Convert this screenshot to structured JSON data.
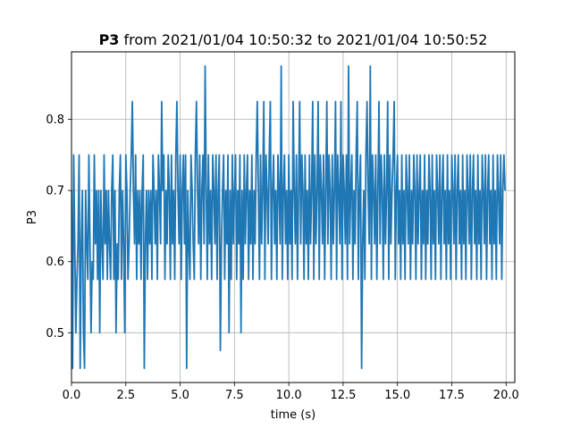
{
  "chart_data": {
    "type": "line",
    "title_bold": "P3",
    "title_rest": " from 2021/01/04 10:50:32 to 2021/01/04 10:50:52",
    "xlabel": "time (s)",
    "ylabel": "P3",
    "xlim": [
      0.0,
      20.4
    ],
    "ylim": [
      0.43,
      0.895
    ],
    "xticks": [
      0.0,
      2.5,
      5.0,
      7.5,
      10.0,
      12.5,
      15.0,
      17.5,
      20.0
    ],
    "xtick_labels": [
      "0.0",
      "2.5",
      "5.0",
      "7.5",
      "10.0",
      "12.5",
      "15.0",
      "17.5",
      "20.0"
    ],
    "yticks": [
      0.5,
      0.6,
      0.7,
      0.8
    ],
    "ytick_labels": [
      "0.5",
      "0.6",
      "0.7",
      "0.8"
    ],
    "grid": true,
    "series_color": "#1f77b4",
    "series": [
      {
        "x_step": 0.05,
        "x_start": 0.0,
        "values": [
          0.7,
          0.45,
          0.75,
          0.625,
          0.5,
          0.575,
          0.625,
          0.75,
          0.45,
          0.625,
          0.7,
          0.5,
          0.45,
          0.7,
          0.625,
          0.575,
          0.75,
          0.625,
          0.5,
          0.6,
          0.575,
          0.75,
          0.625,
          0.7,
          0.575,
          0.7,
          0.5,
          0.7,
          0.625,
          0.575,
          0.75,
          0.625,
          0.7,
          0.575,
          0.7,
          0.625,
          0.575,
          0.7,
          0.75,
          0.575,
          0.7,
          0.5,
          0.625,
          0.575,
          0.7,
          0.75,
          0.575,
          0.7,
          0.625,
          0.5,
          0.75,
          0.7,
          0.575,
          0.625,
          0.7,
          0.75,
          0.825,
          0.7,
          0.625,
          0.75,
          0.575,
          0.7,
          0.625,
          0.7,
          0.575,
          0.7,
          0.75,
          0.45,
          0.625,
          0.7,
          0.575,
          0.7,
          0.625,
          0.7,
          0.575,
          0.75,
          0.7,
          0.625,
          0.7,
          0.575,
          0.75,
          0.7,
          0.625,
          0.825,
          0.7,
          0.75,
          0.575,
          0.7,
          0.625,
          0.75,
          0.7,
          0.575,
          0.75,
          0.625,
          0.7,
          0.575,
          0.75,
          0.825,
          0.7,
          0.625,
          0.75,
          0.575,
          0.7,
          0.75,
          0.625,
          0.75,
          0.45,
          0.7,
          0.625,
          0.575,
          0.75,
          0.7,
          0.625,
          0.575,
          0.75,
          0.825,
          0.7,
          0.625,
          0.75,
          0.575,
          0.7,
          0.75,
          0.625,
          0.875,
          0.7,
          0.575,
          0.75,
          0.625,
          0.7,
          0.575,
          0.75,
          0.7,
          0.625,
          0.75,
          0.575,
          0.7,
          0.75,
          0.475,
          0.625,
          0.7,
          0.75,
          0.575,
          0.7,
          0.625,
          0.75,
          0.5,
          0.7,
          0.575,
          0.75,
          0.625,
          0.7,
          0.75,
          0.575,
          0.7,
          0.625,
          0.75,
          0.5,
          0.7,
          0.575,
          0.75,
          0.625,
          0.7,
          0.75,
          0.575,
          0.7,
          0.625,
          0.75,
          0.575,
          0.7,
          0.625,
          0.75,
          0.825,
          0.7,
          0.575,
          0.75,
          0.625,
          0.7,
          0.825,
          0.575,
          0.75,
          0.7,
          0.625,
          0.75,
          0.825,
          0.575,
          0.7,
          0.75,
          0.625,
          0.7,
          0.575,
          0.75,
          0.7,
          0.625,
          0.875,
          0.575,
          0.7,
          0.75,
          0.625,
          0.7,
          0.575,
          0.75,
          0.625,
          0.7,
          0.575,
          0.825,
          0.7,
          0.625,
          0.75,
          0.575,
          0.7,
          0.825,
          0.625,
          0.75,
          0.7,
          0.575,
          0.75,
          0.625,
          0.7,
          0.575,
          0.75,
          0.625,
          0.7,
          0.825,
          0.575,
          0.75,
          0.625,
          0.7,
          0.825,
          0.575,
          0.75,
          0.7,
          0.625,
          0.75,
          0.575,
          0.7,
          0.825,
          0.625,
          0.75,
          0.7,
          0.575,
          0.75,
          0.625,
          0.7,
          0.825,
          0.575,
          0.75,
          0.7,
          0.625,
          0.825,
          0.575,
          0.75,
          0.7,
          0.625,
          0.75,
          0.575,
          0.875,
          0.625,
          0.7,
          0.75,
          0.575,
          0.7,
          0.625,
          0.75,
          0.825,
          0.575,
          0.7,
          0.75,
          0.45,
          0.625,
          0.7,
          0.575,
          0.75,
          0.825,
          0.7,
          0.625,
          0.875,
          0.575,
          0.75,
          0.7,
          0.625,
          0.75,
          0.575,
          0.7,
          0.825,
          0.625,
          0.75,
          0.7,
          0.575,
          0.75,
          0.625,
          0.7,
          0.825,
          0.575,
          0.75,
          0.625,
          0.7,
          0.75,
          0.825,
          0.575,
          0.7,
          0.75,
          0.625,
          0.7,
          0.575,
          0.75,
          0.625,
          0.7,
          0.575,
          0.75,
          0.7,
          0.625,
          0.75,
          0.575,
          0.7,
          0.625,
          0.75,
          0.7,
          0.575,
          0.75,
          0.625,
          0.7,
          0.75,
          0.575,
          0.7,
          0.625,
          0.75,
          0.575,
          0.7,
          0.625,
          0.75,
          0.7,
          0.575,
          0.75,
          0.625,
          0.7,
          0.575,
          0.75,
          0.7,
          0.625,
          0.75,
          0.575,
          0.7,
          0.75,
          0.625,
          0.7,
          0.575,
          0.75,
          0.625,
          0.7,
          0.575,
          0.75,
          0.7,
          0.625,
          0.75,
          0.575,
          0.7,
          0.75,
          0.625,
          0.7,
          0.575,
          0.75,
          0.625,
          0.7,
          0.575,
          0.75,
          0.7,
          0.625,
          0.75,
          0.575,
          0.7,
          0.75,
          0.625,
          0.7,
          0.575,
          0.75,
          0.625,
          0.7,
          0.575,
          0.75,
          0.7,
          0.625,
          0.75,
          0.575,
          0.7,
          0.75,
          0.625,
          0.7,
          0.575,
          0.75,
          0.625,
          0.7,
          0.575,
          0.75,
          0.7,
          0.625,
          0.75,
          0.575,
          0.7,
          0.75,
          0.7
        ]
      }
    ]
  }
}
